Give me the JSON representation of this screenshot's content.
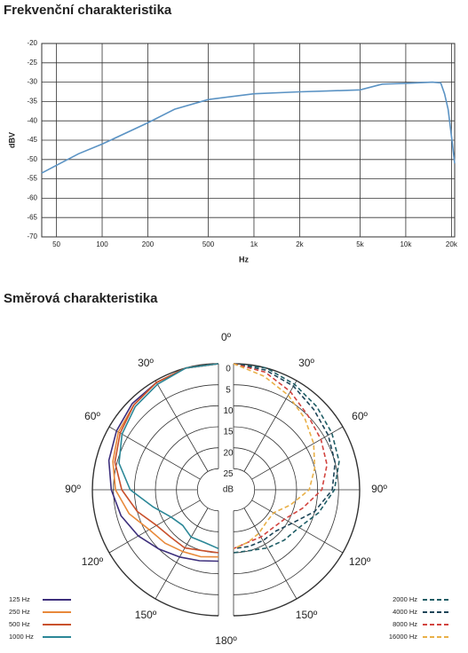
{
  "chart_data": [
    {
      "type": "line",
      "title": "Frekvenční charakteristika",
      "x_label": "Hz",
      "y_label": "dBV",
      "log_x": true,
      "grid": true,
      "color": "#5b93c4",
      "x": [
        40,
        50,
        70,
        100,
        200,
        300,
        500,
        1000,
        2000,
        3000,
        5000,
        7000,
        10000,
        15000,
        17000,
        18000,
        19000,
        20000,
        21000
      ],
      "values": [
        -53.5,
        -51.5,
        -48.5,
        -46,
        -40.5,
        -37,
        -34.5,
        -33,
        -32.5,
        -32.3,
        -32,
        -30.5,
        -30.3,
        -30,
        -30.2,
        -33,
        -37,
        -44,
        -51
      ],
      "xlim": [
        40,
        21000
      ],
      "xticks": [
        50,
        100,
        200,
        500,
        {
          "value": 1000,
          "label": "1k"
        },
        {
          "value": 2000,
          "label": "2k"
        },
        {
          "value": 5000,
          "label": "5k"
        },
        {
          "value": 10000,
          "label": "10k"
        },
        {
          "value": 20000,
          "label": "20k"
        }
      ],
      "ylim": [
        -70,
        -20
      ],
      "yticks": [
        -20,
        -25,
        -30,
        -35,
        -40,
        -45,
        -50,
        -55,
        -60,
        -65,
        -70
      ]
    },
    {
      "type": "polar",
      "title": "Směrová charakteristika",
      "r_label": "dB",
      "theta": [
        0,
        15,
        30,
        45,
        60,
        75,
        90,
        105,
        120,
        135,
        150,
        165,
        180
      ],
      "rlim": [
        30,
        0
      ],
      "rticks": [
        0,
        5,
        10,
        15,
        20,
        25
      ],
      "thetaticks": [
        {
          "value": 0,
          "label": "0º"
        },
        {
          "value": 30,
          "label": "30º"
        },
        {
          "value": 60,
          "label": "60º"
        },
        {
          "value": 90,
          "label": "90º"
        },
        {
          "value": 120,
          "label": "120º"
        },
        {
          "value": 150,
          "label": "150º"
        },
        {
          "value": 180,
          "label": "180º"
        }
      ],
      "series": [
        {
          "name": "125 Hz",
          "color": "#3d2f7c",
          "side": "left",
          "dashed": false,
          "values": [
            0,
            0,
            0.5,
            1,
            2,
            3,
            4.5,
            6,
            8,
            10,
            11.5,
            12.5,
            13
          ]
        },
        {
          "name": "250 Hz",
          "color": "#e8893a",
          "side": "left",
          "dashed": false,
          "values": [
            0,
            0,
            0.5,
            1.5,
            2.5,
            4,
            5.5,
            8,
            11,
            12,
            13,
            13.5,
            14
          ]
        },
        {
          "name": "500 Hz",
          "color": "#c9512c",
          "side": "left",
          "dashed": false,
          "values": [
            0,
            0,
            0.5,
            1.5,
            3,
            4.5,
            7,
            10,
            13,
            14,
            14,
            15,
            15
          ]
        },
        {
          "name": "1000 Hz",
          "color": "#2b8797",
          "side": "left",
          "dashed": false,
          "values": [
            0,
            0,
            1,
            2,
            3.5,
            5.5,
            9,
            14,
            17,
            18,
            17,
            17,
            16
          ]
        },
        {
          "name": "2000 Hz",
          "color": "#1f5e66",
          "side": "right",
          "dashed": true,
          "values": [
            0,
            0,
            1,
            2,
            3,
            4,
            6,
            9,
            12,
            13,
            14,
            15,
            15
          ]
        },
        {
          "name": "4000 Hz",
          "color": "#1d4558",
          "side": "right",
          "dashed": true,
          "values": [
            0,
            0.5,
            1.5,
            3,
            4,
            5,
            6.5,
            10,
            14,
            16,
            16,
            16,
            16
          ]
        },
        {
          "name": "8000 Hz",
          "color": "#d2443f",
          "side": "right",
          "dashed": true,
          "values": [
            0,
            1,
            3,
            5,
            6,
            7,
            9,
            13,
            16,
            17,
            17,
            17,
            16
          ]
        },
        {
          "name": "16000 Hz",
          "color": "#e9b048",
          "side": "right",
          "dashed": true,
          "values": [
            0,
            2,
            4,
            6,
            8,
            10,
            12,
            16,
            19,
            19,
            18,
            17,
            16
          ]
        }
      ]
    }
  ]
}
